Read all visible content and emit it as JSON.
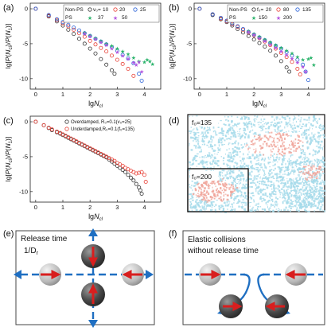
{
  "panel_labels": [
    "(a)",
    "(b)",
    "(c)",
    "(d)",
    "(e)",
    "(f)"
  ],
  "panel_a": {
    "legend": {
      "nonps_label": "Non-PS",
      "ps_label": "PS",
      "param_label": "v₀=",
      "entries": [
        "10",
        "20",
        "25",
        "37",
        "50"
      ]
    },
    "xlabel": "lgN_cl",
    "ylabel": "lg[P(N_cl)/P(N_1)]",
    "xticks": [
      "0",
      "1",
      "2",
      "3",
      "4"
    ],
    "yticks": [
      "0",
      "-5",
      "-10"
    ]
  },
  "panel_b": {
    "legend": {
      "nonps_label": "Non-PS",
      "ps_label": "PS",
      "param_label": "f₀=",
      "entries": [
        "20",
        "80",
        "135",
        "150",
        "200"
      ]
    },
    "xlabel": "lgN_cl",
    "ylabel": "lg[P(N_cl)/P(N_1)]",
    "xticks": [
      "0",
      "1",
      "2",
      "3",
      "4"
    ],
    "yticks": [
      "0",
      "-5",
      "-10"
    ]
  },
  "panel_c": {
    "legend": {
      "entries": [
        "Overdamped, R₀=0.1(v₀=25)",
        "Underdamped,R₀=0.1(f₀=135)"
      ]
    },
    "xlabel": "lgN_cl",
    "ylabel": "lg[P(N_cl)/P(N_1)]",
    "xticks": [
      "0",
      "1",
      "2",
      "3",
      "4"
    ],
    "yticks": [
      "0",
      "-5",
      "-10"
    ]
  },
  "panel_d": {
    "label_top": "f₀=135",
    "label_inset": "f₀=200"
  },
  "panel_e": {
    "line1": "Release time",
    "line2": "1/D",
    "sub": "r"
  },
  "panel_f": {
    "line1": "Elastic collisions",
    "line2": "without release time"
  },
  "colors": {
    "black": "#3a3a3a",
    "red": "#e8443a",
    "blue": "#2b63d8",
    "green": "#2bb36b",
    "purple": "#b455e0",
    "arrow_blue": "#1f6fc2",
    "cluster_blue": "#a6dbea",
    "cluster_red": "#f0a59a"
  },
  "chart_data": [
    {
      "type": "scatter",
      "panel": "a",
      "xlim": [
        -0.2,
        4.6
      ],
      "ylim": [
        -11.5,
        0.8
      ],
      "series": [
        {
          "name": "10",
          "group": "Non-PS",
          "color": "black",
          "x": [
            0.0,
            0.48,
            0.78,
            1.0,
            1.2,
            1.4,
            1.6,
            1.8,
            2.0,
            2.2,
            2.4,
            2.6,
            2.8,
            2.9
          ],
          "y": [
            0.0,
            -1.1,
            -1.8,
            -2.4,
            -3.0,
            -3.6,
            -4.3,
            -5.0,
            -5.7,
            -6.4,
            -7.2,
            -8.0,
            -8.8,
            -9.3
          ]
        },
        {
          "name": "20",
          "group": "Non-PS",
          "color": "red",
          "x": [
            0.0,
            0.48,
            0.78,
            1.0,
            1.2,
            1.4,
            1.6,
            1.8,
            2.0,
            2.2,
            2.4,
            2.6,
            2.8,
            3.0,
            3.2,
            3.4,
            3.6
          ],
          "y": [
            0.0,
            -1.0,
            -1.6,
            -2.1,
            -2.5,
            -3.0,
            -3.5,
            -4.0,
            -4.6,
            -5.1,
            -5.6,
            -6.1,
            -6.7,
            -7.3,
            -7.9,
            -8.6,
            -9.6
          ]
        },
        {
          "name": "25",
          "group": "Non-PS",
          "color": "blue",
          "x": [
            0.0,
            0.48,
            0.78,
            1.0,
            1.2,
            1.4,
            1.6,
            1.8,
            2.0,
            2.2,
            2.4,
            2.6,
            2.8,
            3.0,
            3.2,
            3.4,
            3.6,
            3.8,
            3.9
          ],
          "y": [
            0.0,
            -0.9,
            -1.5,
            -1.9,
            -2.3,
            -2.7,
            -3.1,
            -3.5,
            -3.9,
            -4.3,
            -4.7,
            -5.1,
            -5.5,
            -6.0,
            -6.6,
            -7.1,
            -7.8,
            -9.3,
            -10.3
          ]
        },
        {
          "name": "37",
          "group": "PS",
          "color": "green",
          "x": [
            1.8,
            2.0,
            2.2,
            2.4,
            2.6,
            2.8,
            3.0,
            3.2,
            3.4,
            3.6,
            3.8,
            4.0,
            4.1,
            4.2,
            4.3
          ],
          "y": [
            -3.4,
            -3.8,
            -4.2,
            -4.6,
            -5.0,
            -5.3,
            -5.7,
            -6.1,
            -6.5,
            -7.0,
            -7.5,
            -7.6,
            -7.3,
            -7.5,
            -7.9
          ]
        },
        {
          "name": "50",
          "group": "PS",
          "color": "purple",
          "x": [
            1.8,
            2.0,
            2.2,
            2.4,
            2.6,
            2.8,
            3.0,
            3.2,
            3.4,
            3.6,
            3.7,
            3.8,
            3.9
          ],
          "y": [
            -3.5,
            -3.9,
            -4.3,
            -4.8,
            -5.2,
            -5.7,
            -6.2,
            -6.7,
            -7.2,
            -7.7,
            -8.0,
            -7.6,
            -9.0
          ]
        }
      ]
    },
    {
      "type": "scatter",
      "panel": "b",
      "xlim": [
        -0.2,
        4.6
      ],
      "ylim": [
        -11.5,
        0.8
      ],
      "series": [
        {
          "name": "20",
          "group": "Non-PS",
          "color": "black",
          "x": [
            0.0,
            0.48,
            0.78,
            1.0,
            1.2,
            1.4,
            1.6,
            1.8,
            2.0,
            2.2,
            2.4,
            2.6,
            2.8,
            3.0,
            3.2,
            3.3
          ],
          "y": [
            0.0,
            -0.9,
            -1.5,
            -1.9,
            -2.4,
            -2.9,
            -3.4,
            -3.9,
            -4.4,
            -4.9,
            -5.4,
            -6.0,
            -6.7,
            -7.5,
            -8.4,
            -9.0
          ]
        },
        {
          "name": "80",
          "group": "Non-PS",
          "color": "red",
          "x": [
            0.0,
            0.48,
            0.78,
            1.0,
            1.2,
            1.4,
            1.6,
            1.8,
            2.0,
            2.2,
            2.4,
            2.6,
            2.8,
            3.0,
            3.2,
            3.4,
            3.6,
            3.7
          ],
          "y": [
            0.0,
            -0.8,
            -1.4,
            -1.8,
            -2.2,
            -2.6,
            -3.0,
            -3.4,
            -3.8,
            -4.2,
            -4.7,
            -5.2,
            -5.7,
            -6.3,
            -6.9,
            -7.6,
            -8.6,
            -9.4
          ]
        },
        {
          "name": "135",
          "group": "Non-PS",
          "color": "blue",
          "x": [
            0.0,
            0.48,
            0.78,
            1.0,
            1.2,
            1.4,
            1.6,
            1.8,
            2.0,
            2.2,
            2.4,
            2.6,
            2.8,
            3.0,
            3.2,
            3.4,
            3.6,
            3.8,
            3.9,
            4.0
          ],
          "y": [
            0.0,
            -0.8,
            -1.3,
            -1.7,
            -2.1,
            -2.5,
            -2.9,
            -3.3,
            -3.7,
            -4.1,
            -4.5,
            -4.9,
            -5.3,
            -5.7,
            -6.2,
            -6.7,
            -7.3,
            -8.0,
            -9.0,
            -10.2
          ]
        },
        {
          "name": "150",
          "group": "PS",
          "color": "green",
          "x": [
            1.8,
            2.0,
            2.2,
            2.4,
            2.6,
            2.8,
            3.0,
            3.2,
            3.4,
            3.6,
            3.8,
            4.0,
            4.1,
            4.2
          ],
          "y": [
            -3.2,
            -3.6,
            -4.0,
            -4.4,
            -4.8,
            -5.2,
            -5.6,
            -6.0,
            -6.4,
            -6.9,
            -7.3,
            -7.2,
            -7.0,
            -8.0
          ]
        },
        {
          "name": "200",
          "group": "PS",
          "color": "purple",
          "x": [
            1.8,
            2.0,
            2.2,
            2.4,
            2.6,
            2.8,
            3.0,
            3.2,
            3.4,
            3.6,
            3.8,
            3.9
          ],
          "y": [
            -3.3,
            -3.7,
            -4.2,
            -4.6,
            -5.1,
            -5.6,
            -6.1,
            -6.6,
            -7.1,
            -7.7,
            -8.3,
            -9.0
          ]
        }
      ]
    },
    {
      "type": "scatter",
      "panel": "c",
      "xlim": [
        -0.2,
        4.6
      ],
      "ylim": [
        -11.5,
        0.8
      ],
      "series": [
        {
          "name": "Overdamped, R₀=0.1(v₀=25)",
          "color": "black",
          "x": [
            0.0,
            0.3,
            0.48,
            0.6,
            0.78,
            0.9,
            1.0,
            1.1,
            1.2,
            1.3,
            1.4,
            1.5,
            1.6,
            1.7,
            1.8,
            1.9,
            2.0,
            2.1,
            2.2,
            2.3,
            2.4,
            2.5,
            2.6,
            2.7,
            2.8,
            2.9,
            3.0,
            3.1,
            3.2,
            3.3,
            3.4,
            3.5,
            3.6,
            3.7,
            3.8,
            3.85,
            3.9
          ],
          "y": [
            0.0,
            -0.5,
            -0.9,
            -1.2,
            -1.5,
            -1.7,
            -1.9,
            -2.1,
            -2.3,
            -2.5,
            -2.7,
            -2.9,
            -3.1,
            -3.3,
            -3.5,
            -3.7,
            -3.9,
            -4.1,
            -4.3,
            -4.5,
            -4.7,
            -4.9,
            -5.1,
            -5.4,
            -5.7,
            -6.0,
            -6.3,
            -6.6,
            -6.9,
            -7.2,
            -7.6,
            -8.0,
            -8.4,
            -8.9,
            -9.4,
            -9.8,
            -10.3
          ]
        },
        {
          "name": "Underdamped,R₀=0.1(f₀=135)",
          "color": "red",
          "x": [
            0.0,
            0.3,
            0.48,
            0.6,
            0.78,
            0.9,
            1.0,
            1.1,
            1.2,
            1.3,
            1.4,
            1.5,
            1.6,
            1.7,
            1.8,
            1.9,
            2.0,
            2.1,
            2.2,
            2.3,
            2.4,
            2.5,
            2.6,
            2.7,
            2.8,
            2.9,
            3.0,
            3.1,
            3.2,
            3.3,
            3.4,
            3.5,
            3.6,
            3.7,
            3.8,
            3.9,
            4.0,
            4.05
          ],
          "y": [
            0.0,
            -0.5,
            -0.85,
            -1.1,
            -1.4,
            -1.6,
            -1.8,
            -2.0,
            -2.2,
            -2.4,
            -2.6,
            -2.8,
            -3.0,
            -3.2,
            -3.4,
            -3.6,
            -3.8,
            -4.0,
            -4.2,
            -4.4,
            -4.6,
            -4.8,
            -5.0,
            -5.2,
            -5.4,
            -5.6,
            -5.9,
            -6.1,
            -6.3,
            -6.6,
            -6.8,
            -7.0,
            -7.2,
            -7.4,
            -7.3,
            -7.2,
            -7.6,
            -8.6
          ]
        }
      ]
    }
  ]
}
